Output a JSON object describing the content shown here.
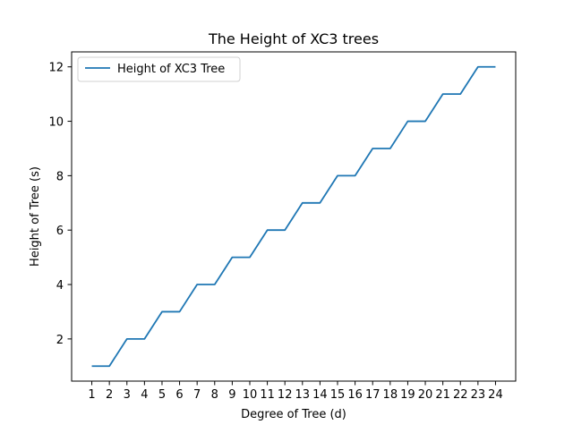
{
  "chart_data": {
    "type": "line",
    "title": "The Height of XC3 trees",
    "xlabel": "Degree of Tree (d)",
    "ylabel": "Height of Tree (s)",
    "x": [
      1,
      2,
      3,
      4,
      5,
      6,
      7,
      8,
      9,
      10,
      11,
      12,
      13,
      14,
      15,
      16,
      17,
      18,
      19,
      20,
      21,
      22,
      23,
      24
    ],
    "xticks": [
      "1",
      "2",
      "3",
      "4",
      "5",
      "6",
      "7",
      "8",
      "9",
      "10",
      "11",
      "12",
      "13",
      "14",
      "15",
      "16",
      "17",
      "18",
      "19",
      "20",
      "21",
      "22",
      "23",
      "24"
    ],
    "yticks": [
      "2",
      "4",
      "6",
      "8",
      "10",
      "12"
    ],
    "ytick_values": [
      2,
      4,
      6,
      8,
      10,
      12
    ],
    "xlim": [
      -0.15,
      25.15
    ],
    "ylim": [
      0.45,
      12.55
    ],
    "grid": false,
    "legend_position": "upper-left",
    "series": [
      {
        "name": "Height of XC3 Tree",
        "color": "#1f77b4",
        "values": [
          1,
          1,
          2,
          2,
          3,
          3,
          4,
          4,
          5,
          5,
          6,
          6,
          7,
          7,
          8,
          8,
          9,
          9,
          10,
          10,
          11,
          11,
          12,
          12
        ]
      }
    ]
  }
}
